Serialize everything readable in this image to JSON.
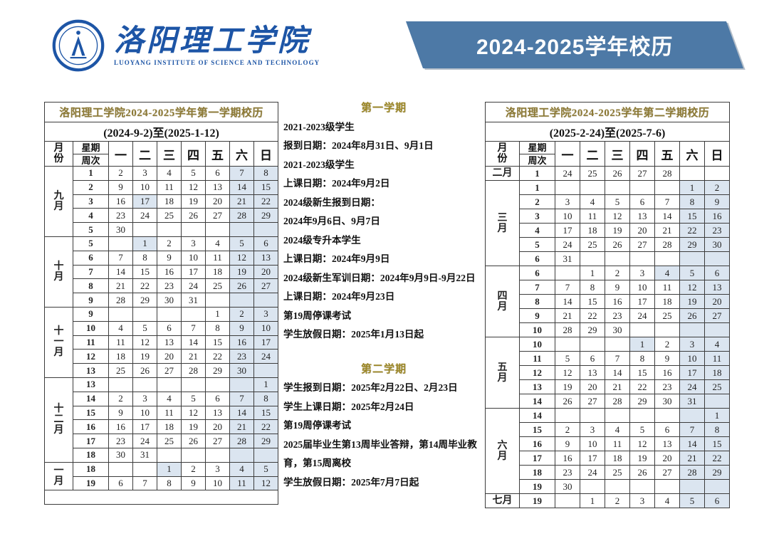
{
  "header": {
    "logo": {
      "cn_name": "洛阳理工学院",
      "en_name": "LUOYANG INSTITUTE OF SCIENCE AND TECHNOLOGY",
      "emblem": "university-seal"
    },
    "banner": {
      "title": "2024-2025学年校历"
    }
  },
  "colors": {
    "banner_bg": "#4d79a6",
    "logo_blue": "#1d55a6",
    "table_title_gold": "#8d7a36",
    "notes_title_gold": "#9c8727",
    "weekend_highlight": "#dbe5f0",
    "border": "#3c3c3c"
  },
  "table_headers": {
    "month_line1": "月",
    "month_line2": "份",
    "week_top": "星期",
    "week_bottom": "周次",
    "days": [
      "一",
      "二",
      "三",
      "四",
      "五",
      "六",
      "日"
    ]
  },
  "semester1": {
    "title": "洛阳理工学院2024-2025学年第一学期校历",
    "subtitle": "(2024-9-2)至(2025-1-12)",
    "months": [
      {
        "label": "九月",
        "chars": [
          "九",
          "月"
        ],
        "vertical": true,
        "rows": [
          {
            "week": "1",
            "days": [
              "2",
              "3",
              "4",
              "5",
              "6",
              "7",
              "8"
            ]
          },
          {
            "week": "2",
            "days": [
              "9",
              "10",
              "11",
              "12",
              "13",
              "14",
              "15"
            ]
          },
          {
            "week": "3",
            "days": [
              "16",
              "17",
              "18",
              "19",
              "20",
              "21",
              "22"
            ],
            "special": [
              1
            ]
          },
          {
            "week": "4",
            "days": [
              "23",
              "24",
              "25",
              "26",
              "27",
              "28",
              "29"
            ]
          },
          {
            "week": "5",
            "days": [
              "30",
              "",
              "",
              "",
              "",
              "",
              ""
            ]
          }
        ]
      },
      {
        "label": "十月",
        "chars": [
          "十",
          "月"
        ],
        "vertical": true,
        "rows": [
          {
            "week": "5",
            "days": [
              "",
              "1",
              "2",
              "3",
              "4",
              "5",
              "6"
            ],
            "special": [
              1
            ]
          },
          {
            "week": "6",
            "days": [
              "7",
              "8",
              "9",
              "10",
              "11",
              "12",
              "13"
            ]
          },
          {
            "week": "7",
            "days": [
              "14",
              "15",
              "16",
              "17",
              "18",
              "19",
              "20"
            ]
          },
          {
            "week": "8",
            "days": [
              "21",
              "22",
              "23",
              "24",
              "25",
              "26",
              "27"
            ]
          },
          {
            "week": "9",
            "days": [
              "28",
              "29",
              "30",
              "31",
              "",
              "",
              ""
            ]
          }
        ]
      },
      {
        "label": "十一月",
        "chars": [
          "十",
          "一",
          "月"
        ],
        "vertical": true,
        "rows": [
          {
            "week": "9",
            "days": [
              "",
              "",
              "",
              "",
              "1",
              "2",
              "3"
            ]
          },
          {
            "week": "10",
            "days": [
              "4",
              "5",
              "6",
              "7",
              "8",
              "9",
              "10"
            ]
          },
          {
            "week": "11",
            "days": [
              "11",
              "12",
              "13",
              "14",
              "15",
              "16",
              "17"
            ]
          },
          {
            "week": "12",
            "days": [
              "18",
              "19",
              "20",
              "21",
              "22",
              "23",
              "24"
            ]
          },
          {
            "week": "13",
            "days": [
              "25",
              "26",
              "27",
              "28",
              "29",
              "30",
              ""
            ]
          }
        ]
      },
      {
        "label": "十二月",
        "chars": [
          "十",
          "二",
          "月"
        ],
        "vertical": true,
        "rows": [
          {
            "week": "13",
            "days": [
              "",
              "",
              "",
              "",
              "",
              "",
              "1"
            ]
          },
          {
            "week": "14",
            "days": [
              "2",
              "3",
              "4",
              "5",
              "6",
              "7",
              "8"
            ]
          },
          {
            "week": "15",
            "days": [
              "9",
              "10",
              "11",
              "12",
              "13",
              "14",
              "15"
            ]
          },
          {
            "week": "16",
            "days": [
              "16",
              "17",
              "18",
              "19",
              "20",
              "21",
              "22"
            ]
          },
          {
            "week": "17",
            "days": [
              "23",
              "24",
              "25",
              "26",
              "27",
              "28",
              "29"
            ]
          },
          {
            "week": "18",
            "days": [
              "30",
              "31",
              "",
              "",
              "",
              "",
              ""
            ]
          }
        ]
      },
      {
        "label": "一月",
        "chars": [
          "一",
          "月"
        ],
        "vertical": true,
        "rows": [
          {
            "week": "18",
            "days": [
              "",
              "",
              "1",
              "2",
              "3",
              "4",
              "5"
            ],
            "special": [
              2
            ]
          },
          {
            "week": "19",
            "days": [
              "6",
              "7",
              "8",
              "9",
              "10",
              "11",
              "12"
            ]
          }
        ]
      }
    ]
  },
  "semester2": {
    "title": "洛阳理工学院2024-2025学年第二学期校历",
    "subtitle": "(2025-2-24)至(2025-7-6)",
    "months": [
      {
        "label": "二月",
        "chars": [
          "二",
          "月"
        ],
        "vertical": false,
        "rows": [
          {
            "week": "1",
            "days": [
              "24",
              "25",
              "26",
              "27",
              "28",
              "",
              ""
            ],
            "weekend_hl": false
          }
        ]
      },
      {
        "label": "三月",
        "chars": [
          "三",
          "月"
        ],
        "vertical": true,
        "rows": [
          {
            "week": "1",
            "days": [
              "",
              "",
              "",
              "",
              "",
              "1",
              "2"
            ]
          },
          {
            "week": "2",
            "days": [
              "3",
              "4",
              "5",
              "6",
              "7",
              "8",
              "9"
            ]
          },
          {
            "week": "3",
            "days": [
              "10",
              "11",
              "12",
              "13",
              "14",
              "15",
              "16"
            ]
          },
          {
            "week": "4",
            "days": [
              "17",
              "18",
              "19",
              "20",
              "21",
              "22",
              "23"
            ]
          },
          {
            "week": "5",
            "days": [
              "24",
              "25",
              "26",
              "27",
              "28",
              "29",
              "30"
            ]
          },
          {
            "week": "6",
            "days": [
              "31",
              "",
              "",
              "",
              "",
              "",
              ""
            ]
          }
        ]
      },
      {
        "label": "四月",
        "chars": [
          "四",
          "月"
        ],
        "vertical": true,
        "rows": [
          {
            "week": "6",
            "days": [
              "",
              "1",
              "2",
              "3",
              "4",
              "5",
              "6"
            ],
            "special": [
              4
            ]
          },
          {
            "week": "7",
            "days": [
              "7",
              "8",
              "9",
              "10",
              "11",
              "12",
              "13"
            ]
          },
          {
            "week": "8",
            "days": [
              "14",
              "15",
              "16",
              "17",
              "18",
              "19",
              "20"
            ]
          },
          {
            "week": "9",
            "days": [
              "21",
              "22",
              "23",
              "24",
              "25",
              "26",
              "27"
            ]
          },
          {
            "week": "10",
            "days": [
              "28",
              "29",
              "30",
              "",
              "",
              "",
              ""
            ]
          }
        ]
      },
      {
        "label": "五月",
        "chars": [
          "五",
          "月"
        ],
        "vertical": true,
        "rows": [
          {
            "week": "10",
            "days": [
              "",
              "",
              "",
              "1",
              "2",
              "3",
              "4"
            ],
            "special": [
              3
            ]
          },
          {
            "week": "11",
            "days": [
              "5",
              "6",
              "7",
              "8",
              "9",
              "10",
              "11"
            ]
          },
          {
            "week": "12",
            "days": [
              "12",
              "13",
              "14",
              "15",
              "16",
              "17",
              "18"
            ]
          },
          {
            "week": "13",
            "days": [
              "19",
              "20",
              "21",
              "22",
              "23",
              "24",
              "25"
            ]
          },
          {
            "week": "14",
            "days": [
              "26",
              "27",
              "28",
              "29",
              "30",
              "31",
              ""
            ]
          }
        ]
      },
      {
        "label": "六月",
        "chars": [
          "六",
          "月"
        ],
        "vertical": true,
        "rows": [
          {
            "week": "14",
            "days": [
              "",
              "",
              "",
              "",
              "",
              "",
              "1"
            ]
          },
          {
            "week": "15",
            "days": [
              "2",
              "3",
              "4",
              "5",
              "6",
              "7",
              "8"
            ]
          },
          {
            "week": "16",
            "days": [
              "9",
              "10",
              "11",
              "12",
              "13",
              "14",
              "15"
            ]
          },
          {
            "week": "17",
            "days": [
              "16",
              "17",
              "18",
              "19",
              "20",
              "21",
              "22"
            ]
          },
          {
            "week": "18",
            "days": [
              "23",
              "24",
              "25",
              "26",
              "27",
              "28",
              "29"
            ]
          },
          {
            "week": "19",
            "days": [
              "30",
              "",
              "",
              "",
              "",
              "",
              ""
            ]
          }
        ]
      },
      {
        "label": "七月",
        "chars": [
          "七",
          "月"
        ],
        "vertical": false,
        "rows": [
          {
            "week": "19",
            "days": [
              "",
              "1",
              "2",
              "3",
              "4",
              "5",
              "6"
            ]
          }
        ]
      }
    ]
  },
  "notes1": {
    "title": "第一学期",
    "lines": [
      "2021-2023级学生",
      "报到日期：2024年8月31日、9月1日",
      "2021-2023级学生",
      "上课日期：2024年9月2日",
      "2024级新生报到日期：",
      "2024年9月6日、9月7日",
      "2024级专升本学生",
      "上课日期：2024年9月9日",
      "2024级新生军训日期：2024年9月9日-9月22日",
      "上课日期：2024年9月23日",
      "第19周停课考试",
      "学生放假日期：2025年1月13日起"
    ]
  },
  "notes2": {
    "title": "第二学期",
    "lines": [
      "学生报到日期：2025年2月22日、2月23日",
      "学生上课日期：2025年2月24日",
      "第19周停课考试",
      "2025届毕业生第13周毕业答辩，第14周毕业教育，第15周离校",
      "学生放假日期：2025年7月7日起"
    ]
  }
}
